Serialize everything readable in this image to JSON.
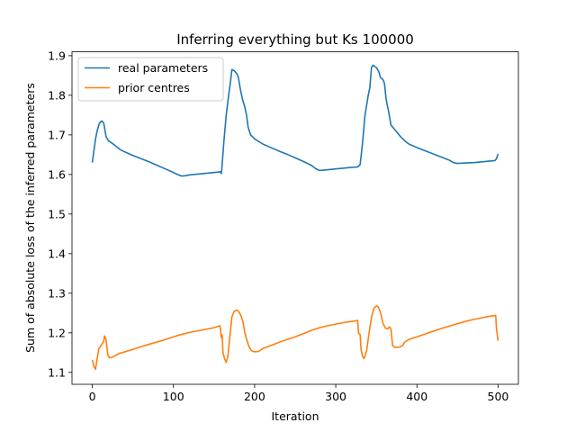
{
  "chart_data": {
    "type": "line",
    "title": "Inferring everything but Ks 100000",
    "xlabel": "Iteration",
    "ylabel": "Sum of absolute loss of the inferred parameters",
    "xlim": [
      -25,
      525
    ],
    "ylim": [
      1.07,
      1.91
    ],
    "xticks": [
      0,
      100,
      200,
      300,
      400,
      500
    ],
    "yticks": [
      1.1,
      1.2,
      1.3,
      1.4,
      1.5,
      1.6,
      1.7,
      1.8,
      1.9
    ],
    "yticks_labels": [
      "1.1",
      "1.2",
      "1.3",
      "1.4",
      "1.5",
      "1.6",
      "1.7",
      "1.8",
      "1.9"
    ],
    "grid": false,
    "legend_position": "upper left",
    "series": [
      {
        "name": "real parameters",
        "color": "#1f77b4",
        "points": [
          [
            0,
            1.63
          ],
          [
            2,
            1.66
          ],
          [
            4,
            1.69
          ],
          [
            6,
            1.71
          ],
          [
            8,
            1.725
          ],
          [
            10,
            1.733
          ],
          [
            12,
            1.735
          ],
          [
            14,
            1.73
          ],
          [
            15,
            1.72
          ],
          [
            17,
            1.695
          ],
          [
            20,
            1.685
          ],
          [
            25,
            1.678
          ],
          [
            30,
            1.67
          ],
          [
            35,
            1.662
          ],
          [
            40,
            1.657
          ],
          [
            50,
            1.648
          ],
          [
            60,
            1.64
          ],
          [
            70,
            1.632
          ],
          [
            80,
            1.623
          ],
          [
            90,
            1.614
          ],
          [
            100,
            1.605
          ],
          [
            105,
            1.6
          ],
          [
            110,
            1.596
          ],
          [
            115,
            1.597
          ],
          [
            120,
            1.599
          ],
          [
            130,
            1.601
          ],
          [
            140,
            1.603
          ],
          [
            150,
            1.605
          ],
          [
            155,
            1.606
          ],
          [
            158,
            1.607
          ],
          [
            159,
            1.602
          ],
          [
            160,
            1.625
          ],
          [
            162,
            1.68
          ],
          [
            165,
            1.75
          ],
          [
            168,
            1.8
          ],
          [
            170,
            1.83
          ],
          [
            172,
            1.865
          ],
          [
            175,
            1.862
          ],
          [
            178,
            1.855
          ],
          [
            180,
            1.845
          ],
          [
            182,
            1.82
          ],
          [
            185,
            1.79
          ],
          [
            188,
            1.77
          ],
          [
            190,
            1.75
          ],
          [
            192,
            1.72
          ],
          [
            195,
            1.7
          ],
          [
            200,
            1.69
          ],
          [
            210,
            1.677
          ],
          [
            220,
            1.668
          ],
          [
            230,
            1.659
          ],
          [
            240,
            1.651
          ],
          [
            250,
            1.642
          ],
          [
            260,
            1.633
          ],
          [
            270,
            1.623
          ],
          [
            275,
            1.615
          ],
          [
            280,
            1.61
          ],
          [
            285,
            1.611
          ],
          [
            290,
            1.612
          ],
          [
            300,
            1.614
          ],
          [
            310,
            1.616
          ],
          [
            320,
            1.618
          ],
          [
            327,
            1.619
          ],
          [
            330,
            1.625
          ],
          [
            333,
            1.68
          ],
          [
            336,
            1.75
          ],
          [
            340,
            1.8
          ],
          [
            342,
            1.82
          ],
          [
            344,
            1.87
          ],
          [
            346,
            1.876
          ],
          [
            350,
            1.87
          ],
          [
            353,
            1.86
          ],
          [
            355,
            1.845
          ],
          [
            358,
            1.84
          ],
          [
            360,
            1.83
          ],
          [
            362,
            1.79
          ],
          [
            365,
            1.76
          ],
          [
            368,
            1.725
          ],
          [
            372,
            1.715
          ],
          [
            376,
            1.705
          ],
          [
            380,
            1.695
          ],
          [
            385,
            1.685
          ],
          [
            390,
            1.677
          ],
          [
            400,
            1.668
          ],
          [
            410,
            1.66
          ],
          [
            420,
            1.652
          ],
          [
            430,
            1.644
          ],
          [
            440,
            1.636
          ],
          [
            445,
            1.63
          ],
          [
            450,
            1.628
          ],
          [
            460,
            1.629
          ],
          [
            470,
            1.63
          ],
          [
            480,
            1.632
          ],
          [
            490,
            1.634
          ],
          [
            496,
            1.635
          ],
          [
            498,
            1.64
          ],
          [
            500,
            1.652
          ]
        ]
      },
      {
        "name": "prior centres",
        "color": "#ff7f0e",
        "points": [
          [
            0,
            1.132
          ],
          [
            2,
            1.115
          ],
          [
            4,
            1.108
          ],
          [
            6,
            1.135
          ],
          [
            8,
            1.16
          ],
          [
            10,
            1.165
          ],
          [
            12,
            1.172
          ],
          [
            14,
            1.178
          ],
          [
            15,
            1.192
          ],
          [
            17,
            1.182
          ],
          [
            19,
            1.145
          ],
          [
            21,
            1.137
          ],
          [
            24,
            1.138
          ],
          [
            28,
            1.142
          ],
          [
            32,
            1.147
          ],
          [
            40,
            1.152
          ],
          [
            50,
            1.158
          ],
          [
            60,
            1.165
          ],
          [
            70,
            1.171
          ],
          [
            80,
            1.177
          ],
          [
            90,
            1.183
          ],
          [
            100,
            1.19
          ],
          [
            110,
            1.196
          ],
          [
            120,
            1.201
          ],
          [
            130,
            1.205
          ],
          [
            140,
            1.209
          ],
          [
            150,
            1.213
          ],
          [
            157,
            1.218
          ],
          [
            158,
            1.21
          ],
          [
            159,
            1.188
          ],
          [
            160,
            1.195
          ],
          [
            161,
            1.15
          ],
          [
            163,
            1.135
          ],
          [
            165,
            1.125
          ],
          [
            167,
            1.14
          ],
          [
            170,
            1.2
          ],
          [
            172,
            1.24
          ],
          [
            175,
            1.255
          ],
          [
            178,
            1.257
          ],
          [
            180,
            1.255
          ],
          [
            183,
            1.245
          ],
          [
            186,
            1.225
          ],
          [
            188,
            1.2
          ],
          [
            190,
            1.185
          ],
          [
            193,
            1.165
          ],
          [
            196,
            1.155
          ],
          [
            200,
            1.152
          ],
          [
            205,
            1.153
          ],
          [
            210,
            1.16
          ],
          [
            220,
            1.168
          ],
          [
            230,
            1.176
          ],
          [
            240,
            1.183
          ],
          [
            250,
            1.19
          ],
          [
            260,
            1.198
          ],
          [
            270,
            1.206
          ],
          [
            280,
            1.213
          ],
          [
            290,
            1.218
          ],
          [
            300,
            1.222
          ],
          [
            310,
            1.226
          ],
          [
            320,
            1.229
          ],
          [
            327,
            1.231
          ],
          [
            328,
            1.2
          ],
          [
            330,
            1.195
          ],
          [
            331,
            1.16
          ],
          [
            333,
            1.14
          ],
          [
            335,
            1.135
          ],
          [
            338,
            1.155
          ],
          [
            341,
            1.2
          ],
          [
            344,
            1.24
          ],
          [
            347,
            1.262
          ],
          [
            350,
            1.268
          ],
          [
            352,
            1.266
          ],
          [
            355,
            1.252
          ],
          [
            358,
            1.225
          ],
          [
            361,
            1.212
          ],
          [
            364,
            1.21
          ],
          [
            366,
            1.215
          ],
          [
            368,
            1.21
          ],
          [
            370,
            1.168
          ],
          [
            373,
            1.163
          ],
          [
            378,
            1.164
          ],
          [
            382,
            1.167
          ],
          [
            385,
            1.177
          ],
          [
            390,
            1.183
          ],
          [
            400,
            1.19
          ],
          [
            410,
            1.197
          ],
          [
            420,
            1.204
          ],
          [
            430,
            1.211
          ],
          [
            440,
            1.217
          ],
          [
            450,
            1.223
          ],
          [
            460,
            1.229
          ],
          [
            470,
            1.234
          ],
          [
            480,
            1.238
          ],
          [
            490,
            1.242
          ],
          [
            497,
            1.244
          ],
          [
            498,
            1.21
          ],
          [
            500,
            1.18
          ]
        ]
      }
    ]
  }
}
